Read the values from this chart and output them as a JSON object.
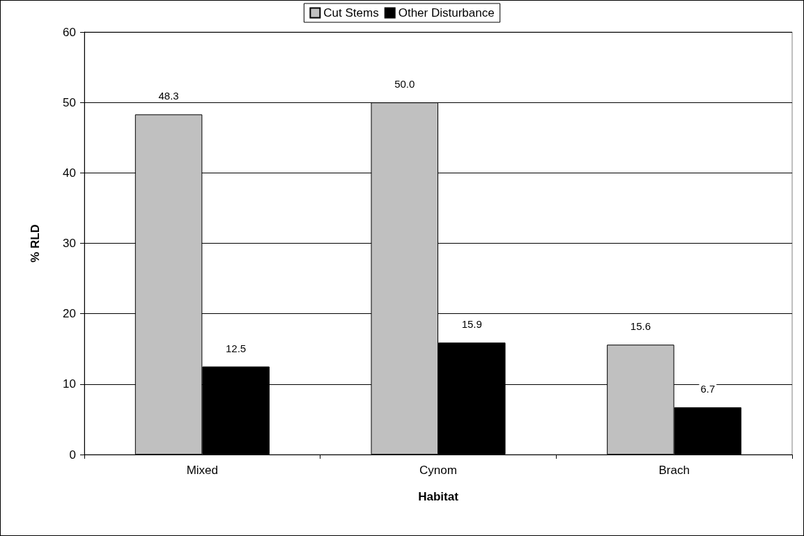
{
  "chart_data": {
    "type": "bar",
    "xlabel": "Habitat",
    "ylabel": "% RLD",
    "categories": [
      "Mixed",
      "Cynom",
      "Brach"
    ],
    "series": [
      {
        "name": "Cut Stems",
        "color": "#c0c0c0",
        "values": [
          48.3,
          50.0,
          15.6
        ],
        "value_labels": [
          "48.3",
          "50.0",
          "15.6"
        ]
      },
      {
        "name": "Other Disturbance",
        "color": "#000000",
        "values": [
          12.5,
          15.9,
          6.7
        ],
        "value_labels": [
          "12.5",
          "15.9",
          "6.7"
        ]
      }
    ],
    "ylim": [
      0,
      60
    ],
    "yticks": [
      0,
      10,
      20,
      30,
      40,
      50,
      60
    ],
    "grid": "y",
    "legend": "top"
  }
}
